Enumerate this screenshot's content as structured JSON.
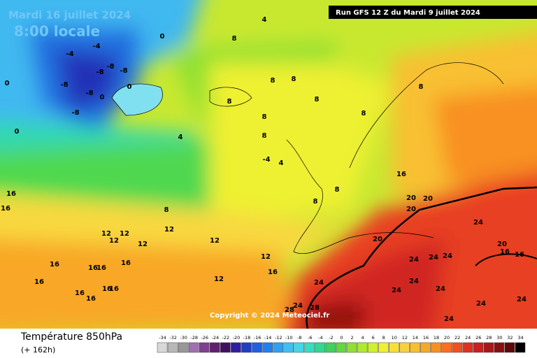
{
  "header": {
    "date": "Mardi 16 juillet 2024",
    "time": "8:00 locale",
    "run": "Run GFS 12 Z du Mardi 9 juillet 2024"
  },
  "copyright": "Copyright © 2024 Meteociel.fr",
  "footer": {
    "title": "Température 850hPa",
    "lead": "(+ 162h)"
  },
  "legend": {
    "ticks": [
      -34,
      -32,
      -30,
      -28,
      -26,
      -24,
      -22,
      -20,
      -18,
      -16,
      -14,
      -12,
      -10,
      -8,
      -6,
      -4,
      -2,
      0,
      2,
      4,
      6,
      8,
      10,
      12,
      14,
      16,
      18,
      20,
      22,
      24,
      26,
      28,
      30,
      32,
      34
    ],
    "colors": [
      "#d8d8d8",
      "#b8b8b8",
      "#989898",
      "#a070b0",
      "#804090",
      "#602070",
      "#401060",
      "#3020a0",
      "#2040c0",
      "#2060e0",
      "#2080f0",
      "#30a0f0",
      "#40c0f0",
      "#40d8e8",
      "#30e0c0",
      "#30d890",
      "#40d060",
      "#60d840",
      "#90e030",
      "#b0e830",
      "#d0f030",
      "#f0f030",
      "#f8e030",
      "#f8d040",
      "#f8c030",
      "#f8a828",
      "#f89020",
      "#f87020",
      "#f05020",
      "#e03020",
      "#c82020",
      "#a81818",
      "#881010",
      "#600808",
      "#000000"
    ]
  },
  "contour_labels": [
    4,
    0,
    8,
    -4,
    -4,
    -8,
    -8,
    -8,
    -8,
    -8,
    0,
    -8,
    0,
    0,
    0,
    8,
    8,
    8,
    8,
    8,
    8,
    8,
    8,
    4,
    -4,
    4,
    8,
    8,
    16,
    20,
    20,
    20,
    8,
    12,
    12,
    12,
    12,
    12,
    12,
    12,
    16,
    12,
    16,
    16,
    16,
    16,
    16,
    16,
    16,
    16,
    16,
    20,
    24,
    20,
    16,
    16,
    24,
    24,
    24,
    24,
    24,
    24,
    24,
    24,
    28,
    28,
    24,
    24,
    24,
    16,
    16
  ]
}
